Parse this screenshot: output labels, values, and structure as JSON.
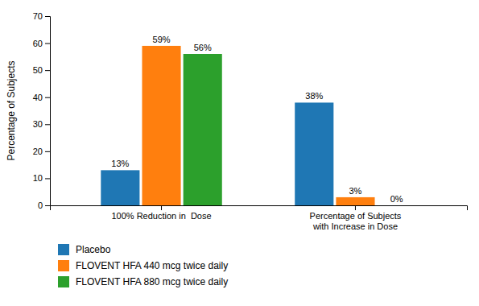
{
  "chart_data": {
    "type": "bar",
    "categories": [
      "100% Reduction in  Dose",
      "Percentage of Subjects\nwith Increase in Dose"
    ],
    "series": [
      {
        "name": "Placebo",
        "values": [
          13,
          38
        ],
        "value_labels": [
          "13%",
          "38%"
        ]
      },
      {
        "name": "FLOVENT HFA 440 mcg twice daily",
        "values": [
          59,
          3
        ],
        "value_labels": [
          "59%",
          "3%"
        ]
      },
      {
        "name": "FLOVENT HFA 880 mcg twice daily",
        "values": [
          56,
          0
        ],
        "value_labels": [
          "56%",
          "0%"
        ]
      }
    ],
    "ylabel": "Percentage of Subjects",
    "ylim": [
      0,
      70
    ],
    "yticks": [
      0,
      10,
      20,
      30,
      40,
      50,
      60,
      70
    ],
    "data_labels": true,
    "grid": false,
    "legend": "bottom"
  }
}
